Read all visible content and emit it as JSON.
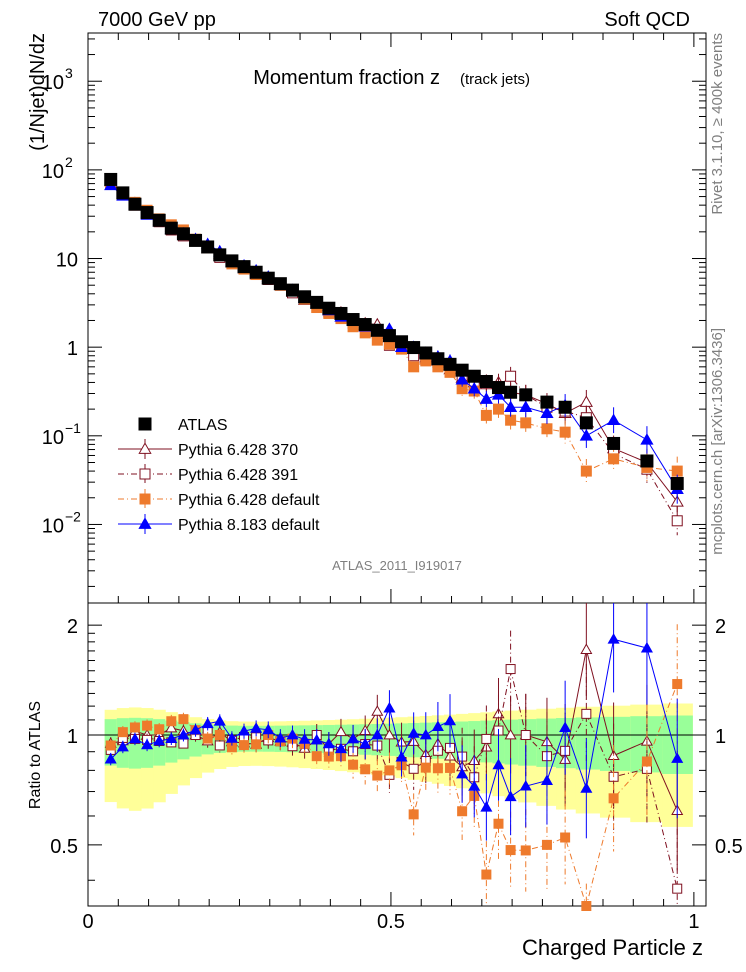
{
  "header": {
    "left": "7000 GeV pp",
    "right": "Soft QCD"
  },
  "side_labels": {
    "top": "Rivet 3.1.10, ≥ 400k events",
    "bottom": "mcplots.cern.ch [arXiv:1306.3436]"
  },
  "watermark": "ATLAS_2011_I919017",
  "chart_data": {
    "type": "scatter",
    "title": "Momentum fraction z",
    "subtitle": "(track jets)",
    "xlabel": "Charged Particle z",
    "ylabel": "(1/Njet)dN/dz",
    "ratio_ylabel": "Ratio to ATLAS",
    "xlim": [
      0,
      1.02
    ],
    "ylim": [
      0.0013,
      3500
    ],
    "yscale": "log",
    "ratio_ylim": [
      0.34,
      2.3
    ],
    "x_ticks": [
      {
        "v": 0,
        "label": "0"
      },
      {
        "v": 0.5,
        "label": "0.5"
      },
      {
        "v": 1,
        "label": "1"
      }
    ],
    "y_ticks": [
      {
        "v": 0.01,
        "base": "10",
        "exp": "−2"
      },
      {
        "v": 0.1,
        "base": "10",
        "exp": "−1"
      },
      {
        "v": 1,
        "base": "1",
        "exp": ""
      },
      {
        "v": 10,
        "base": "10",
        "exp": ""
      },
      {
        "v": 100,
        "base": "10",
        "exp": "2"
      },
      {
        "v": 1000,
        "base": "10",
        "exp": "3"
      }
    ],
    "ratio_ticks": [
      {
        "v": 0.5,
        "label": "0.5"
      },
      {
        "v": 1,
        "label": "1"
      },
      {
        "v": 2,
        "label": "2"
      }
    ],
    "x": [
      0.0375,
      0.0575,
      0.0775,
      0.0975,
      0.1175,
      0.1375,
      0.1575,
      0.1775,
      0.1975,
      0.2175,
      0.2375,
      0.2575,
      0.2775,
      0.2975,
      0.3175,
      0.3375,
      0.3575,
      0.3775,
      0.3975,
      0.4175,
      0.4375,
      0.4575,
      0.4775,
      0.4975,
      0.5175,
      0.5375,
      0.5575,
      0.5775,
      0.5975,
      0.6175,
      0.6375,
      0.6575,
      0.6775,
      0.6975,
      0.7225,
      0.7575,
      0.7875,
      0.8225,
      0.8675,
      0.9225,
      0.9725
    ],
    "series": [
      {
        "name": "ATLAS",
        "color": "#000000",
        "marker": "square-filled",
        "values": [
          78,
          55,
          41,
          33,
          27,
          22,
          19,
          16,
          13.5,
          11,
          9.4,
          8.1,
          7.0,
          6.0,
          5.2,
          4.4,
          3.7,
          3.2,
          2.75,
          2.4,
          2.05,
          1.8,
          1.55,
          1.35,
          1.15,
          0.99,
          0.86,
          0.74,
          0.64,
          0.55,
          0.47,
          0.41,
          0.35,
          0.31,
          0.29,
          0.24,
          0.21,
          0.14,
          0.082,
          0.052,
          0.029
        ]
      },
      {
        "name": "Pythia 6.428 370",
        "color": "#7f1020",
        "marker": "triangle-open",
        "dash": "",
        "values": [
          74,
          53,
          42,
          33,
          27,
          23,
          19.5,
          16,
          13,
          11.2,
          9.0,
          7.7,
          6.6,
          5.9,
          5.0,
          4.2,
          3.4,
          3.1,
          2.6,
          2.45,
          2.0,
          1.85,
          1.8,
          1.35,
          1.1,
          0.95,
          0.76,
          0.7,
          0.56,
          0.45,
          0.4,
          0.38,
          0.4,
          0.31,
          0.29,
          0.23,
          0.18,
          0.24,
          0.072,
          0.05,
          0.018
        ]
      },
      {
        "name": "Pythia 6.428 391",
        "color": "#7f1020",
        "marker": "square-open",
        "dash": "6,3,1,3",
        "values": [
          71,
          54,
          40,
          32,
          26,
          21,
          18,
          16,
          13.8,
          10.3,
          9.1,
          8.0,
          6.9,
          5.8,
          5.0,
          4.1,
          3.5,
          3.2,
          2.5,
          2.2,
          1.85,
          1.7,
          1.45,
          1.05,
          0.97,
          0.8,
          0.73,
          0.67,
          0.59,
          0.48,
          0.36,
          0.4,
          0.36,
          0.47,
          0.29,
          0.21,
          0.19,
          0.16,
          0.063,
          0.042,
          0.011
        ]
      },
      {
        "name": "Pythia 6.428 default",
        "color": "#ee7a2c",
        "marker": "square-filled",
        "dash": "6,3,1,3",
        "values": [
          73,
          56,
          43,
          35,
          28,
          24,
          21,
          16.5,
          13.2,
          11,
          8.7,
          7.6,
          6.6,
          6.0,
          5.0,
          4.3,
          3.5,
          2.8,
          2.4,
          2.1,
          1.7,
          1.45,
          1.2,
          1.08,
          0.95,
          0.6,
          0.7,
          0.6,
          0.52,
          0.34,
          0.32,
          0.17,
          0.2,
          0.15,
          0.14,
          0.12,
          0.11,
          0.04,
          0.055,
          0.044,
          0.04
        ]
      },
      {
        "name": "Pythia 8.183 default",
        "color": "#0000ff",
        "marker": "triangle-filled",
        "dash": "",
        "values": [
          67,
          51,
          40,
          31,
          26,
          21.5,
          19,
          16.5,
          14.5,
          12.0,
          9.2,
          8.3,
          7.3,
          6.2,
          5.1,
          4.4,
          3.6,
          3.1,
          2.6,
          2.2,
          2.0,
          1.7,
          1.55,
          1.6,
          1.0,
          1.0,
          0.86,
          0.78,
          0.7,
          0.43,
          0.34,
          0.26,
          0.29,
          0.21,
          0.21,
          0.18,
          0.22,
          0.1,
          0.15,
          0.09,
          0.025
        ]
      }
    ]
  }
}
